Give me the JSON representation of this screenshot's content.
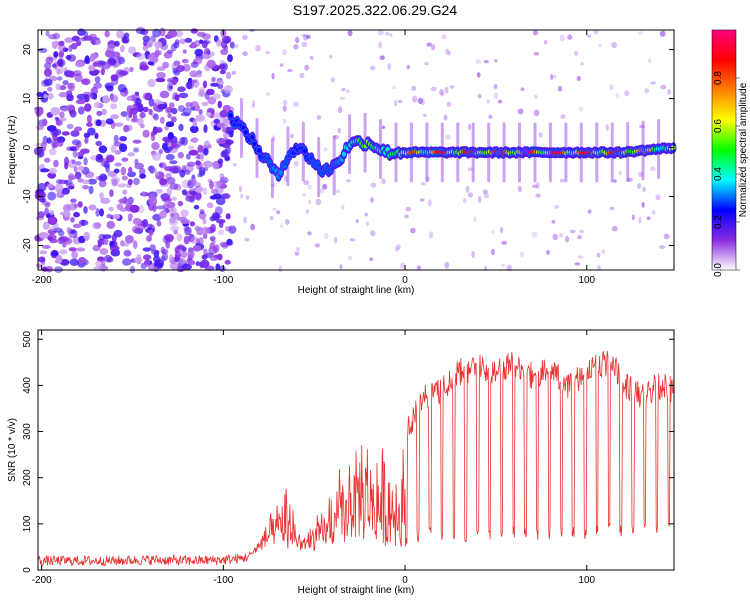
{
  "title": "S197.2025.322.06.29.G24",
  "chart_data": [
    {
      "type": "heatmap",
      "name": "spectrogram",
      "xlabel": "Height of straight line (km)",
      "ylabel": "Frequency (Hz)",
      "xlim": [
        -202,
        148
      ],
      "ylim": [
        -25,
        24
      ],
      "xticks": [
        -200,
        -100,
        0,
        100
      ],
      "yticks": [
        -20,
        -10,
        0,
        10,
        20
      ],
      "colorbar": {
        "label": "Normalized spectral amplitude",
        "range": [
          0,
          1
        ],
        "ticks": [
          "0.0",
          "0.2",
          "0.4",
          "0.6",
          "0.8"
        ],
        "colormap": [
          "#ffffff",
          "#8a2be2",
          "#0000ff",
          "#00ffff",
          "#00ff00",
          "#ffff00",
          "#ff8000",
          "#ff0000",
          "#ff0080"
        ]
      },
      "ridge": {
        "x": [
          -95,
          -90,
          -85,
          -80,
          -75,
          -70,
          -65,
          -60,
          -55,
          -50,
          -45,
          -40,
          -35,
          -30,
          -25,
          -20,
          -15,
          -10,
          -5,
          0,
          20,
          40,
          60,
          80,
          100,
          120,
          148
        ],
        "freq": [
          6,
          4,
          2,
          -1,
          -3,
          -6,
          -2,
          0,
          -1,
          -3,
          -5,
          -4,
          -2,
          1,
          1,
          1,
          0,
          -1,
          -1,
          -1,
          -1,
          -1,
          -1,
          -1,
          -1,
          -1,
          0
        ],
        "amplitude": [
          0.25,
          0.3,
          0.3,
          0.3,
          0.35,
          0.4,
          0.35,
          0.3,
          0.3,
          0.35,
          0.35,
          0.35,
          0.4,
          0.5,
          0.6,
          0.7,
          0.55,
          0.5,
          0.6,
          0.75,
          0.95,
          0.95,
          0.95,
          0.95,
          0.95,
          0.95,
          0.6
        ]
      },
      "noise_region_x": [
        -202,
        -95
      ]
    },
    {
      "type": "line",
      "name": "snr",
      "xlabel": "Height of straight line (km)",
      "ylabel": "SNR (10 * v/v)",
      "xlim": [
        -202,
        148
      ],
      "ylim": [
        0,
        520
      ],
      "xticks": [
        -200,
        -100,
        0,
        100
      ],
      "yticks": [
        0,
        100,
        200,
        300,
        400,
        500
      ],
      "color": "#e8312f",
      "series": [
        {
          "name": "SNR",
          "x": [
            -202,
            -180,
            -160,
            -140,
            -120,
            -100,
            -90,
            -85,
            -80,
            -75,
            -70,
            -65,
            -60,
            -55,
            -50,
            -45,
            -40,
            -35,
            -30,
            -25,
            -20,
            -15,
            -10,
            -5,
            0,
            10,
            20,
            30,
            40,
            50,
            60,
            70,
            80,
            90,
            100,
            110,
            115,
            120,
            130,
            140,
            148
          ],
          "envelope": [
            20,
            20,
            20,
            22,
            20,
            22,
            25,
            40,
            80,
            120,
            150,
            200,
            130,
            90,
            120,
            150,
            200,
            250,
            300,
            330,
            300,
            300,
            280,
            300,
            320,
            400,
            420,
            460,
            470,
            460,
            480,
            450,
            460,
            430,
            460,
            480,
            470,
            430,
            410,
            430,
            420
          ],
          "baseline": [
            20,
            20,
            20,
            22,
            20,
            22,
            25,
            30,
            40,
            50,
            55,
            45,
            40,
            35,
            40,
            45,
            50,
            55,
            60,
            60,
            60,
            55,
            50,
            50,
            50,
            60,
            65,
            60,
            60,
            60,
            65,
            60,
            60,
            65,
            60,
            70,
            80,
            70,
            70,
            75,
            80
          ]
        }
      ]
    }
  ]
}
